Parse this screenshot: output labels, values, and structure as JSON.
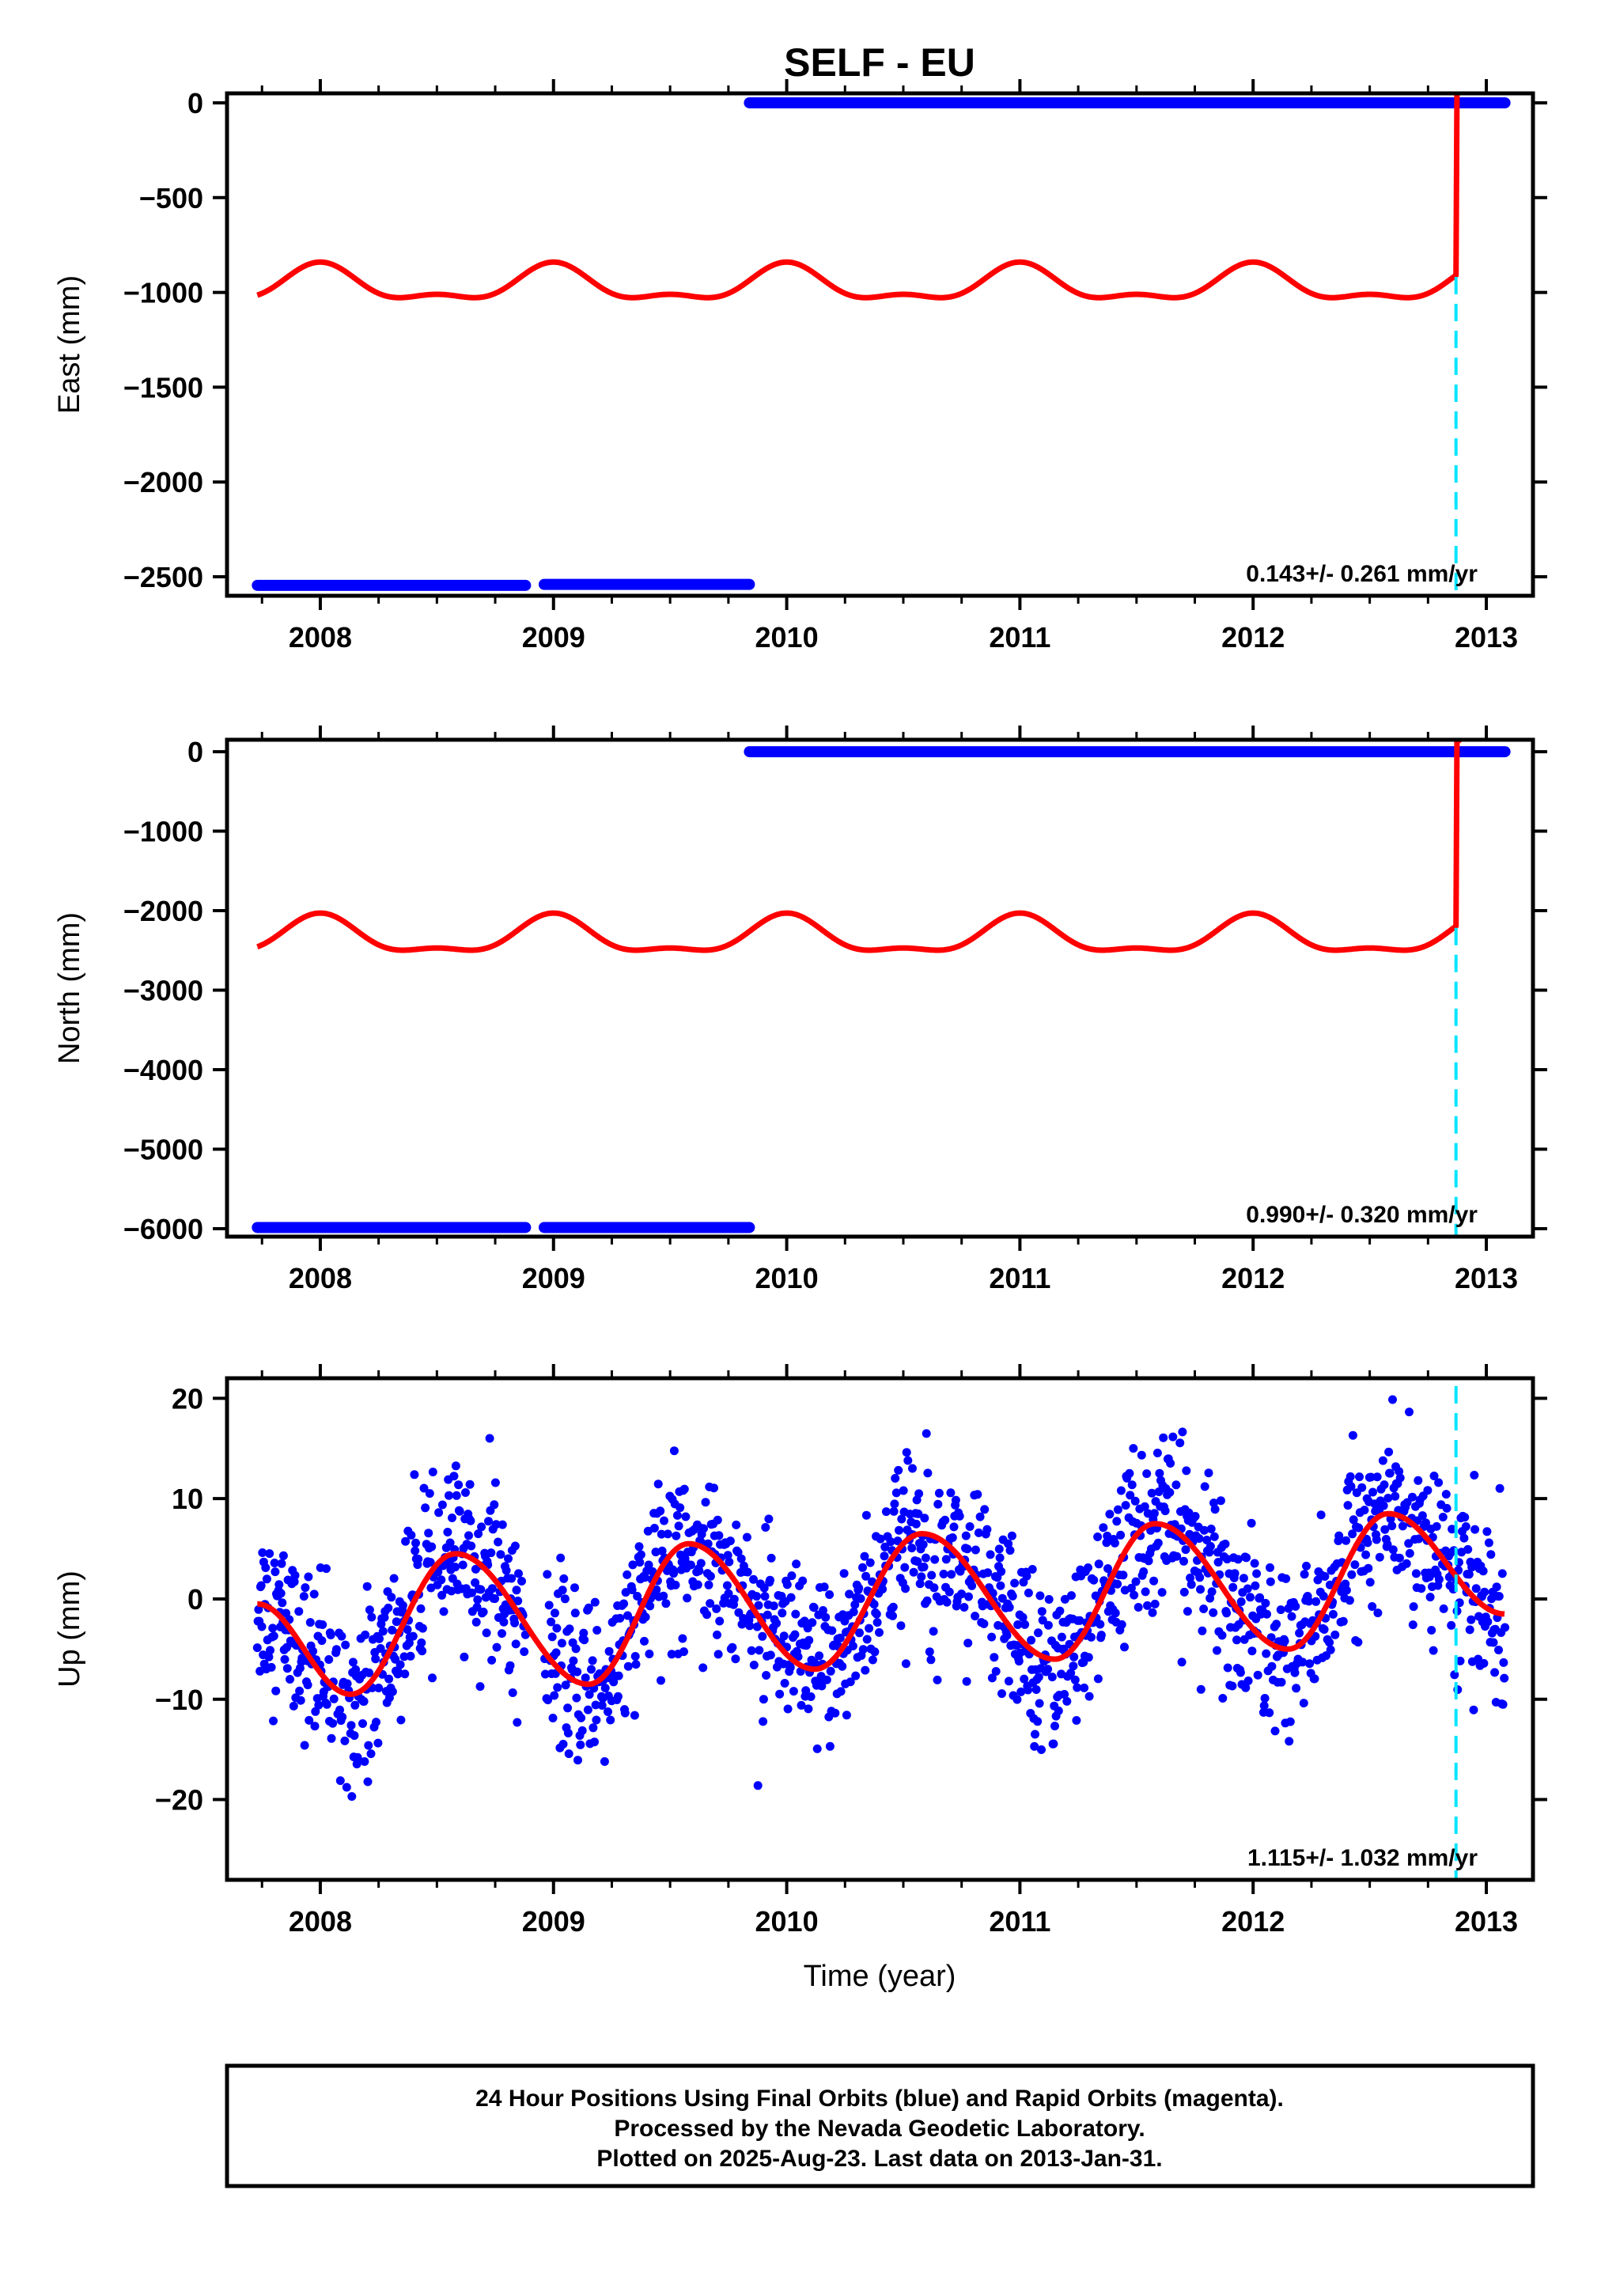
{
  "title": "SELF - EU",
  "xlabel": "Time (year)",
  "colors": {
    "data": "#0000ff",
    "model": "#ff0000",
    "break": "#00e5ff",
    "frame": "#000000"
  },
  "footer": {
    "line1": "24 Hour Positions Using Final Orbits (blue) and Rapid Orbits (magenta).",
    "line2": "Processed by the Nevada Geodetic Laboratory.",
    "line3": "Plotted on 2025-Aug-23. Last data on 2013-Jan-31."
  },
  "chart_data": [
    {
      "type": "scatter",
      "ylabel": "East (mm)",
      "xlim": [
        2007.6,
        2013.2
      ],
      "ylim": [
        -2600,
        50
      ],
      "xticks": [
        2008,
        2009,
        2010,
        2011,
        2012,
        2013
      ],
      "yticks": [
        0,
        -500,
        -1000,
        -1500,
        -2000,
        -2500
      ],
      "rate_label": "0.143+/- 0.261 mm/yr",
      "break_epoch": 2012.87,
      "data_segments": [
        {
          "x_start": 2007.73,
          "x_end": 2008.88,
          "y": -2545
        },
        {
          "x_start": 2008.96,
          "x_end": 2009.84,
          "y": -2540
        },
        {
          "x_start": 2009.84,
          "x_end": 2013.08,
          "y": 0
        }
      ],
      "model": {
        "offset_before": -965,
        "offset_after": -10,
        "annual_amp": 85,
        "semiannual_amp": 40,
        "phase": 2008.0,
        "x_start": 2007.73,
        "x_end": 2013.08
      }
    },
    {
      "type": "scatter",
      "ylabel": "North (mm)",
      "xlim": [
        2007.6,
        2013.2
      ],
      "ylim": [
        -6100,
        150
      ],
      "xticks": [
        2008,
        2009,
        2010,
        2011,
        2012,
        2013
      ],
      "yticks": [
        0,
        -1000,
        -2000,
        -3000,
        -4000,
        -5000,
        -6000
      ],
      "rate_label": "0.990+/- 0.320 mm/yr",
      "break_epoch": 2012.87,
      "data_segments": [
        {
          "x_start": 2007.73,
          "x_end": 2008.88,
          "y": -5985
        },
        {
          "x_start": 2008.96,
          "x_end": 2009.84,
          "y": -5985
        },
        {
          "x_start": 2009.84,
          "x_end": 2013.08,
          "y": 0
        }
      ],
      "model": {
        "offset_before": -2340,
        "offset_after": -30,
        "annual_amp": 220,
        "semiannual_amp": 90,
        "phase": 2008.0,
        "x_start": 2007.73,
        "x_end": 2013.08
      }
    },
    {
      "type": "scatter",
      "ylabel": "Up (mm)",
      "xlim": [
        2007.6,
        2013.2
      ],
      "ylim": [
        -28,
        22
      ],
      "xticks": [
        2008,
        2009,
        2010,
        2011,
        2012,
        2013
      ],
      "yticks": [
        20,
        10,
        0,
        -10,
        -20
      ],
      "rate_label": "1.115+/- 1.032 mm/yr",
      "break_epoch": 2012.87,
      "data_scatter": {
        "x_start": 2007.73,
        "x_end": 2013.08,
        "noise_sd": 4.2,
        "gap": [
          2008.88,
          2008.96
        ]
      },
      "model_peaks": [
        {
          "x": 2007.73,
          "y": -0.5
        },
        {
          "x": 2008.13,
          "y": -9.5
        },
        {
          "x": 2008.58,
          "y": 4.5
        },
        {
          "x": 2009.15,
          "y": -8.5
        },
        {
          "x": 2009.58,
          "y": 5.5
        },
        {
          "x": 2010.12,
          "y": -7.0
        },
        {
          "x": 2010.58,
          "y": 6.5
        },
        {
          "x": 2011.15,
          "y": -6.0
        },
        {
          "x": 2011.58,
          "y": 7.5
        },
        {
          "x": 2012.15,
          "y": -5.0
        },
        {
          "x": 2012.58,
          "y": 8.5
        },
        {
          "x": 2013.08,
          "y": -1.5
        }
      ]
    }
  ]
}
